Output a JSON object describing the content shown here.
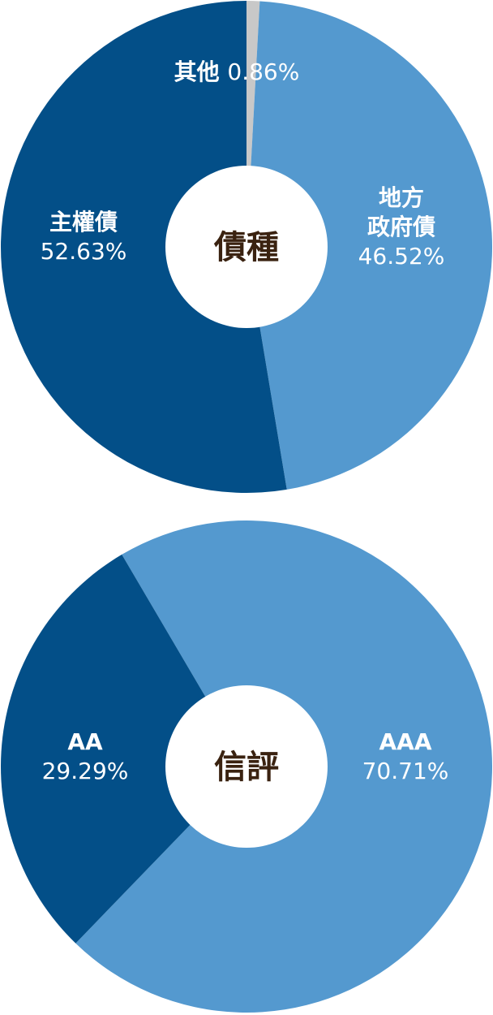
{
  "chart_data": [
    {
      "type": "pie",
      "title": "債種",
      "slices": [
        {
          "name": "其他",
          "percent_label": "0.86%",
          "value": 0.86,
          "color": "#c8c8c8"
        },
        {
          "name": "地方政府債",
          "name_lines": [
            "地方",
            "政府債"
          ],
          "percent_label": "46.52%",
          "value": 46.52,
          "color": "#5499cf"
        },
        {
          "name": "主權債",
          "name_lines": [
            "主權債"
          ],
          "percent_label": "52.63%",
          "value": 52.63,
          "color": "#034f88"
        }
      ]
    },
    {
      "type": "pie",
      "title": "信評",
      "slices": [
        {
          "name": "AAA",
          "name_lines": [
            "AAA"
          ],
          "percent_label": "70.71%",
          "value": 70.71,
          "color": "#5499cf"
        },
        {
          "name": "AA",
          "name_lines": [
            "AA"
          ],
          "percent_label": "29.29%",
          "value": 29.29,
          "color": "#034f88"
        }
      ]
    }
  ]
}
